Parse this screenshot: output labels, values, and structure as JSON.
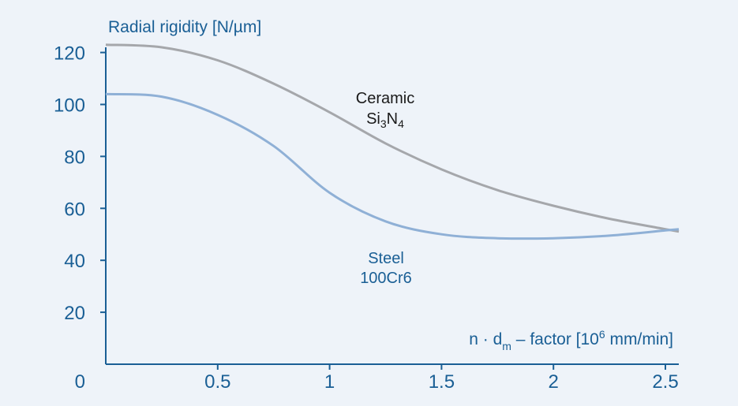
{
  "colors": {
    "background": "#eef3f9",
    "axis": "#1a5f95",
    "text_blue": "#1a5f95",
    "label_dark": "#1a1a1a",
    "steel_line": "#8fb0d6",
    "ceramic_line": "#a5a7ab"
  },
  "chart_data": {
    "type": "line",
    "title": "",
    "ylabel": "Radial rigidity [N/µm]",
    "xlabel": {
      "prefix": "n · d",
      "subscript": "m",
      "middle": " – factor [10",
      "superscript": "6",
      "suffix": " mm/min]"
    },
    "xlim": [
      0,
      2.5
    ],
    "ylim": [
      0,
      122
    ],
    "x_ticks": [
      {
        "value": 0,
        "label": "0"
      },
      {
        "value": 0.5,
        "label": "0.5"
      },
      {
        "value": 1,
        "label": "1"
      },
      {
        "value": 1.5,
        "label": "1.5"
      },
      {
        "value": 2,
        "label": "2"
      },
      {
        "value": 2.5,
        "label": "2.5"
      }
    ],
    "y_ticks": [
      {
        "value": 20,
        "label": "20"
      },
      {
        "value": 40,
        "label": "40"
      },
      {
        "value": 60,
        "label": "60"
      },
      {
        "value": 80,
        "label": "80"
      },
      {
        "value": 100,
        "label": "100"
      },
      {
        "value": 120,
        "label": "120"
      }
    ],
    "grid": false,
    "series": [
      {
        "name": "Ceramic Si3N4",
        "label_line1": "Ceramic",
        "label_line2_base": "Si",
        "label_line2_sub1": "3",
        "label_line2_mid": "N",
        "label_line2_sub2": "4",
        "x": [
          0,
          0.25,
          0.5,
          0.75,
          1.0,
          1.25,
          1.5,
          1.75,
          2.0,
          2.25,
          2.5
        ],
        "values": [
          123,
          122,
          117,
          108,
          97,
          85,
          75,
          67,
          61,
          56,
          52
        ]
      },
      {
        "name": "Steel 100Cr6",
        "label_line1": "Steel",
        "label_line2": "100Cr6",
        "x": [
          0,
          0.25,
          0.5,
          0.75,
          1.0,
          1.25,
          1.5,
          1.75,
          2.0,
          2.25,
          2.5
        ],
        "values": [
          104,
          103,
          96,
          84,
          66,
          55,
          50,
          48.5,
          48.5,
          49.5,
          51.5
        ]
      }
    ]
  }
}
